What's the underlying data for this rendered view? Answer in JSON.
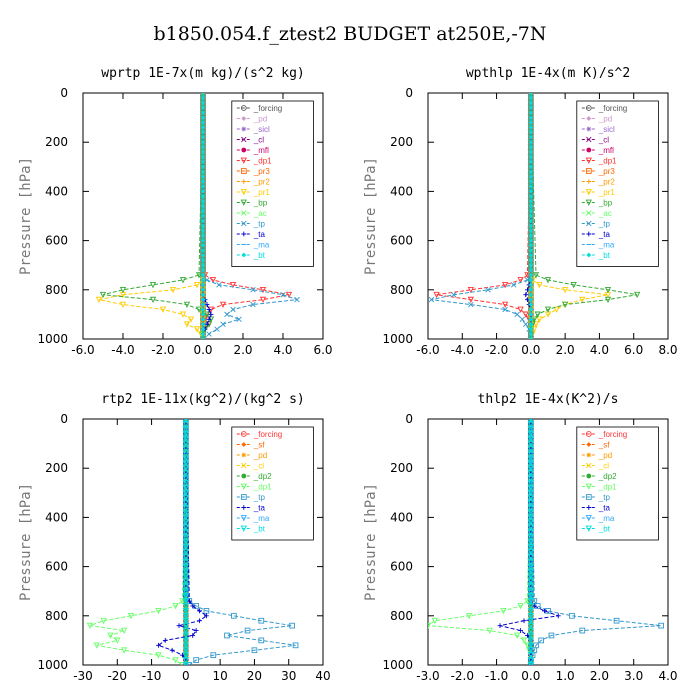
{
  "figure": {
    "title": "b1850.054.f_ztest2  BUDGET at250E,-7N"
  },
  "chart_data": [
    {
      "type": "line",
      "title": "wprtp  1E-7x(m kg)/(s^2 kg)",
      "ylabel": "Pressure [hPa]",
      "xlim": [
        -6,
        6
      ],
      "ylim": [
        0,
        1000
      ],
      "y_inverted": true,
      "xticks": [
        "-6.0",
        "-4.0",
        "-2.0",
        "0.0",
        "2.0",
        "4.0",
        "6.0"
      ],
      "yticks": [
        "0",
        "200",
        "400",
        "600",
        "800",
        "1000"
      ],
      "pressure": [
        740,
        760,
        780,
        800,
        820,
        840,
        860,
        880,
        900,
        920,
        940,
        960,
        980,
        1000
      ],
      "series": [
        {
          "name": "_forcing",
          "color": "#555555",
          "values": [
            0,
            0,
            0,
            0,
            0,
            0,
            0,
            0,
            0,
            0,
            0,
            0,
            0,
            0
          ]
        },
        {
          "name": "_pd",
          "color": "#cc99cc",
          "values": [
            0,
            0,
            0,
            0,
            0,
            0,
            0,
            0,
            0,
            0,
            0,
            0,
            0,
            0
          ]
        },
        {
          "name": "_sicl",
          "color": "#9966cc",
          "values": [
            0,
            0,
            0,
            0,
            0,
            0,
            0,
            0,
            0,
            0,
            0,
            0,
            0,
            0
          ]
        },
        {
          "name": "_cl",
          "color": "#880088",
          "values": [
            0,
            0,
            0,
            0,
            0,
            0,
            0,
            0,
            0,
            0,
            0,
            0,
            0,
            0
          ]
        },
        {
          "name": "_mfl",
          "color": "#cc0066",
          "values": [
            0,
            0,
            0,
            0,
            0,
            0,
            0,
            0,
            0,
            0,
            0,
            0,
            0,
            0
          ]
        },
        {
          "name": "_dp1",
          "color": "#ff3333",
          "values": [
            0.1,
            0.5,
            1.5,
            3.0,
            4.3,
            3.0,
            1.0,
            0.4,
            0.2,
            0.1,
            0.3,
            0.1,
            0.0,
            0.0
          ]
        },
        {
          "name": "_pr3",
          "color": "#ff6600",
          "values": [
            0,
            0,
            0,
            0,
            0,
            0,
            0,
            0,
            0,
            0,
            0,
            0,
            0,
            0
          ]
        },
        {
          "name": "_pr2",
          "color": "#ff9900",
          "values": [
            0,
            0,
            0,
            0,
            0,
            0,
            0,
            0,
            0,
            0,
            0,
            0,
            0,
            0
          ]
        },
        {
          "name": "_pr1",
          "color": "#ffcc00",
          "values": [
            0.0,
            0.0,
            -0.3,
            -1.5,
            -4.0,
            -5.2,
            -4.0,
            -2.0,
            -1.0,
            -0.6,
            -0.8,
            -0.3,
            -0.1,
            0.0
          ]
        },
        {
          "name": "_bp",
          "color": "#33aa33",
          "values": [
            -0.2,
            -1.0,
            -2.5,
            -4.0,
            -5.0,
            -2.5,
            -0.8,
            -0.2,
            0.2,
            0.4,
            0.3,
            0.1,
            0.0,
            0.0
          ]
        },
        {
          "name": "_ac",
          "color": "#66ff66",
          "values": [
            0,
            0,
            0,
            0,
            0,
            0,
            0,
            0,
            0,
            0,
            0,
            0,
            0,
            0
          ]
        },
        {
          "name": "_tp",
          "color": "#3399cc",
          "values": [
            0.0,
            0.2,
            0.8,
            2.5,
            4.0,
            4.7,
            2.5,
            1.5,
            1.2,
            1.8,
            1.0,
            0.7,
            0.3,
            0.0
          ]
        },
        {
          "name": "_ta",
          "color": "#0000cc",
          "values": [
            0,
            0,
            0,
            0,
            0,
            0.1,
            0.2,
            0.3,
            0.4,
            0.3,
            0.2,
            0.1,
            0,
            0
          ]
        },
        {
          "name": "_ma",
          "color": "#33aaff",
          "values": [
            0,
            0,
            0,
            0,
            0,
            0,
            0,
            0,
            0,
            0,
            0,
            0,
            0,
            0
          ]
        },
        {
          "name": "_bt",
          "color": "#00dddd",
          "values": [
            0,
            0,
            0,
            0,
            0,
            0,
            0,
            0,
            0,
            0,
            0,
            0,
            0,
            0
          ]
        }
      ]
    },
    {
      "type": "line",
      "title": "wpthlp  1E-4x(m K)/s^2",
      "ylabel": "Pressure [hPa]",
      "xlim": [
        -6,
        8
      ],
      "ylim": [
        0,
        1000
      ],
      "y_inverted": true,
      "xticks": [
        "-6.0",
        "-4.0",
        "-2.0",
        "0.0",
        "2.0",
        "4.0",
        "6.0",
        "8.0"
      ],
      "yticks": [
        "0",
        "200",
        "400",
        "600",
        "800",
        "1000"
      ],
      "pressure": [
        740,
        760,
        780,
        800,
        820,
        840,
        860,
        880,
        900,
        920,
        940,
        960,
        980,
        1000
      ],
      "series": [
        {
          "name": "_forcing",
          "color": "#555555",
          "values": [
            0,
            0,
            0,
            0,
            0,
            0,
            0,
            0,
            0,
            0,
            0,
            0,
            0,
            0
          ]
        },
        {
          "name": "_pd",
          "color": "#cc99cc",
          "values": [
            0,
            0,
            0,
            0,
            0,
            0,
            0,
            0,
            0,
            0,
            0,
            0,
            0,
            0
          ]
        },
        {
          "name": "_sicl",
          "color": "#9966cc",
          "values": [
            0,
            0,
            0,
            0,
            0,
            0,
            0,
            0,
            0,
            0,
            0,
            0,
            0,
            0
          ]
        },
        {
          "name": "_cl",
          "color": "#880088",
          "values": [
            0,
            0,
            0,
            0,
            0,
            0,
            0,
            0,
            0,
            0,
            0,
            0,
            0,
            0
          ]
        },
        {
          "name": "_mfl",
          "color": "#cc0066",
          "values": [
            0,
            0,
            0,
            0,
            0,
            0,
            0,
            0,
            0,
            0,
            0,
            0,
            0,
            0
          ]
        },
        {
          "name": "_dp1",
          "color": "#ff3333",
          "values": [
            -0.2,
            -0.6,
            -1.5,
            -3.5,
            -5.5,
            -3.5,
            -1.5,
            -0.6,
            -0.3,
            -0.1,
            0.0,
            0.0,
            0.0,
            0.0
          ]
        },
        {
          "name": "_pr3",
          "color": "#ff6600",
          "values": [
            0,
            0,
            0,
            0,
            0,
            0,
            0,
            0,
            0,
            0,
            0,
            0,
            0,
            0
          ]
        },
        {
          "name": "_pr2",
          "color": "#ff9900",
          "values": [
            0,
            0,
            0,
            0,
            0,
            0,
            0,
            0,
            0,
            0,
            0,
            0,
            0,
            0
          ]
        },
        {
          "name": "_pr1",
          "color": "#ffcc00",
          "values": [
            0.0,
            0.1,
            0.5,
            2.0,
            4.5,
            3.0,
            2.0,
            1.5,
            1.0,
            0.5,
            0.3,
            0.2,
            0.1,
            0.0
          ]
        },
        {
          "name": "_bp",
          "color": "#33aa33",
          "values": [
            0.3,
            1.0,
            2.5,
            4.5,
            6.2,
            4.5,
            2.0,
            1.0,
            0.4,
            0.2,
            0.1,
            0.0,
            0.0,
            0.0
          ]
        },
        {
          "name": "_ac",
          "color": "#66ff66",
          "values": [
            0,
            0,
            0,
            0,
            0,
            0,
            0,
            0,
            0,
            0,
            0,
            0,
            0,
            0
          ]
        },
        {
          "name": "_tp",
          "color": "#3399cc",
          "values": [
            0.0,
            -0.2,
            -1.0,
            -2.5,
            -4.5,
            -5.8,
            -3.5,
            -1.5,
            -0.8,
            -0.5,
            -0.3,
            -0.1,
            0.0,
            0.0
          ]
        },
        {
          "name": "_ta",
          "color": "#0000cc",
          "values": [
            0,
            0,
            -0.1,
            -0.2,
            -0.3,
            -0.2,
            -0.1,
            0,
            0,
            0,
            0,
            0,
            0,
            0
          ]
        },
        {
          "name": "_ma",
          "color": "#33aaff",
          "values": [
            0,
            0,
            0,
            0,
            0,
            0,
            0,
            0,
            0,
            0,
            0,
            0,
            0,
            0
          ]
        },
        {
          "name": "_bt",
          "color": "#00dddd",
          "values": [
            0,
            0,
            0,
            0,
            0,
            0,
            0,
            0,
            0,
            0,
            0,
            0,
            0,
            0
          ]
        }
      ]
    },
    {
      "type": "line",
      "title": "rtp2  1E-11x(kg^2)/(kg^2 s)",
      "ylabel": "Pressure [hPa]",
      "xlim": [
        -30,
        40
      ],
      "ylim": [
        0,
        1000
      ],
      "y_inverted": true,
      "xticks": [
        "-30",
        "-20",
        "-10",
        "0",
        "10",
        "20",
        "30",
        "40"
      ],
      "yticks": [
        "0",
        "200",
        "400",
        "600",
        "800",
        "1000"
      ],
      "pressure": [
        740,
        760,
        780,
        800,
        820,
        840,
        860,
        880,
        900,
        920,
        940,
        960,
        980,
        1000
      ],
      "series": [
        {
          "name": "_forcing",
          "color": "#ff3333",
          "values": [
            0,
            0,
            0,
            0,
            0,
            0,
            0,
            0,
            0,
            0,
            0,
            0,
            0,
            0
          ]
        },
        {
          "name": "_sf",
          "color": "#ff6600",
          "values": [
            0,
            0,
            0,
            0,
            0,
            0,
            0,
            0,
            0,
            0,
            0,
            0,
            0,
            0
          ]
        },
        {
          "name": "_pd",
          "color": "#ff9900",
          "values": [
            0,
            0,
            0,
            0,
            0,
            0,
            0,
            0,
            0,
            0,
            0,
            0,
            0,
            0
          ]
        },
        {
          "name": "_cl",
          "color": "#ffcc00",
          "values": [
            0,
            0,
            0,
            0,
            0,
            0,
            0,
            0,
            0,
            0,
            0,
            0,
            0,
            0
          ]
        },
        {
          "name": "_dp2",
          "color": "#33aa33",
          "values": [
            0,
            0,
            0,
            0,
            0,
            0,
            0,
            0,
            0,
            0,
            0,
            0,
            0,
            0
          ]
        },
        {
          "name": "_dp1",
          "color": "#66ff66",
          "values": [
            -1,
            -3,
            -8,
            -16,
            -24,
            -28,
            -18,
            -22,
            -20,
            -26,
            -18,
            -8,
            -3,
            -1
          ]
        },
        {
          "name": "_tp",
          "color": "#3399cc",
          "values": [
            1,
            3,
            6,
            14,
            22,
            31,
            18,
            12,
            22,
            32,
            20,
            8,
            3,
            1
          ]
        },
        {
          "name": "_ta",
          "color": "#0000cc",
          "values": [
            1,
            2,
            4,
            6,
            4,
            -2,
            3,
            2,
            -6,
            -8,
            -4,
            -1,
            0,
            0
          ]
        },
        {
          "name": "_ma",
          "color": "#33aaff",
          "values": [
            0,
            0,
            0,
            0,
            0,
            0,
            0,
            0,
            0,
            0,
            0,
            0,
            0,
            0
          ]
        },
        {
          "name": "_bt",
          "color": "#00dddd",
          "values": [
            0,
            0,
            0,
            0,
            0,
            0,
            0,
            0,
            0,
            0,
            0,
            0,
            0,
            0
          ]
        }
      ]
    },
    {
      "type": "line",
      "title": "thlp2  1E-4x(K^2)/s",
      "ylabel": "Pressure [hPa]",
      "xlim": [
        -3,
        4
      ],
      "ylim": [
        0,
        1000
      ],
      "y_inverted": true,
      "xticks": [
        "-3.0",
        "-2.0",
        "-1.0",
        "0.0",
        "1.0",
        "2.0",
        "3.0",
        "4.0"
      ],
      "yticks": [
        "0",
        "200",
        "400",
        "600",
        "800",
        "1000"
      ],
      "pressure": [
        740,
        760,
        780,
        800,
        820,
        840,
        860,
        880,
        900,
        920,
        940,
        960,
        980,
        1000
      ],
      "series": [
        {
          "name": "_forcing",
          "color": "#ff3333",
          "values": [
            0,
            0,
            0,
            0,
            0,
            0,
            0,
            0,
            0,
            0,
            0,
            0,
            0,
            0
          ]
        },
        {
          "name": "_sf",
          "color": "#ff6600",
          "values": [
            0,
            0,
            0,
            0,
            0,
            0,
            0,
            0,
            0,
            0,
            0,
            0,
            0,
            0
          ]
        },
        {
          "name": "_pd",
          "color": "#ff9900",
          "values": [
            0,
            0,
            0,
            0,
            0,
            0,
            0,
            0,
            0,
            0,
            0,
            0,
            0,
            0
          ]
        },
        {
          "name": "_cl",
          "color": "#ffcc00",
          "values": [
            0,
            0,
            0,
            0,
            0,
            0,
            0,
            0,
            0,
            0,
            0,
            0,
            0,
            0
          ]
        },
        {
          "name": "_dp2",
          "color": "#33aa33",
          "values": [
            0,
            0,
            0,
            0,
            0,
            0,
            0,
            0,
            0,
            0,
            0,
            0,
            0,
            0
          ]
        },
        {
          "name": "_dp1",
          "color": "#66ff66",
          "values": [
            -0.1,
            -0.3,
            -0.8,
            -1.8,
            -2.8,
            -3.0,
            -1.2,
            -0.4,
            -0.2,
            -0.1,
            -0.05,
            0,
            0,
            0
          ]
        },
        {
          "name": "_tp",
          "color": "#3399cc",
          "values": [
            0.1,
            0.2,
            0.5,
            1.2,
            2.5,
            3.8,
            1.5,
            0.6,
            0.3,
            0.15,
            0.1,
            0.05,
            0,
            0
          ]
        },
        {
          "name": "_ta",
          "color": "#0000cc",
          "values": [
            0.0,
            0.1,
            0.4,
            0.8,
            -0.2,
            -0.9,
            -0.3,
            -0.1,
            0,
            0,
            0,
            0,
            0,
            0
          ]
        },
        {
          "name": "_ma",
          "color": "#33aaff",
          "values": [
            0,
            0,
            0,
            0,
            0,
            0,
            0,
            0,
            0,
            0,
            0,
            0,
            0,
            0
          ]
        },
        {
          "name": "_bt",
          "color": "#00dddd",
          "values": [
            0,
            0,
            0,
            0,
            0,
            0,
            0,
            0,
            0,
            0,
            0,
            0,
            0,
            0
          ]
        }
      ]
    }
  ]
}
